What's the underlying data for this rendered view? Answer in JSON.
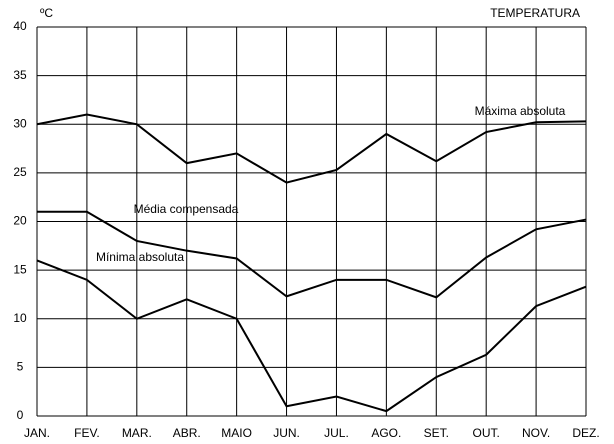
{
  "chart_data": {
    "type": "line",
    "title": "TEMPERATURA",
    "y_unit": "ºC",
    "categories": [
      "JAN.",
      "FEV.",
      "MAR.",
      "ABR.",
      "MAIO",
      "JUN.",
      "JUL.",
      "AGO.",
      "SET.",
      "OUT.",
      "NOV.",
      "DEZ."
    ],
    "series": [
      {
        "name": "Máxima absoluta",
        "color": "#000000",
        "values": [
          30,
          31,
          30,
          26,
          27,
          24,
          25.3,
          29,
          26.2,
          29.2,
          30.2,
          30.3
        ]
      },
      {
        "name": "Média compensada",
        "color": "#000000",
        "values": [
          21,
          21,
          18,
          17,
          16.2,
          12.3,
          14,
          14,
          12.2,
          16.3,
          19.2,
          20.2
        ]
      },
      {
        "name": "Mínima absoluta",
        "color": "#000000",
        "values": [
          16,
          14,
          10,
          12,
          10,
          1,
          2,
          0.5,
          4,
          6.3,
          11.3,
          13.3
        ]
      }
    ],
    "ylim": [
      0,
      40
    ],
    "yticks": [
      0,
      5,
      10,
      15,
      20,
      25,
      30,
      35,
      40
    ],
    "grid": true
  }
}
